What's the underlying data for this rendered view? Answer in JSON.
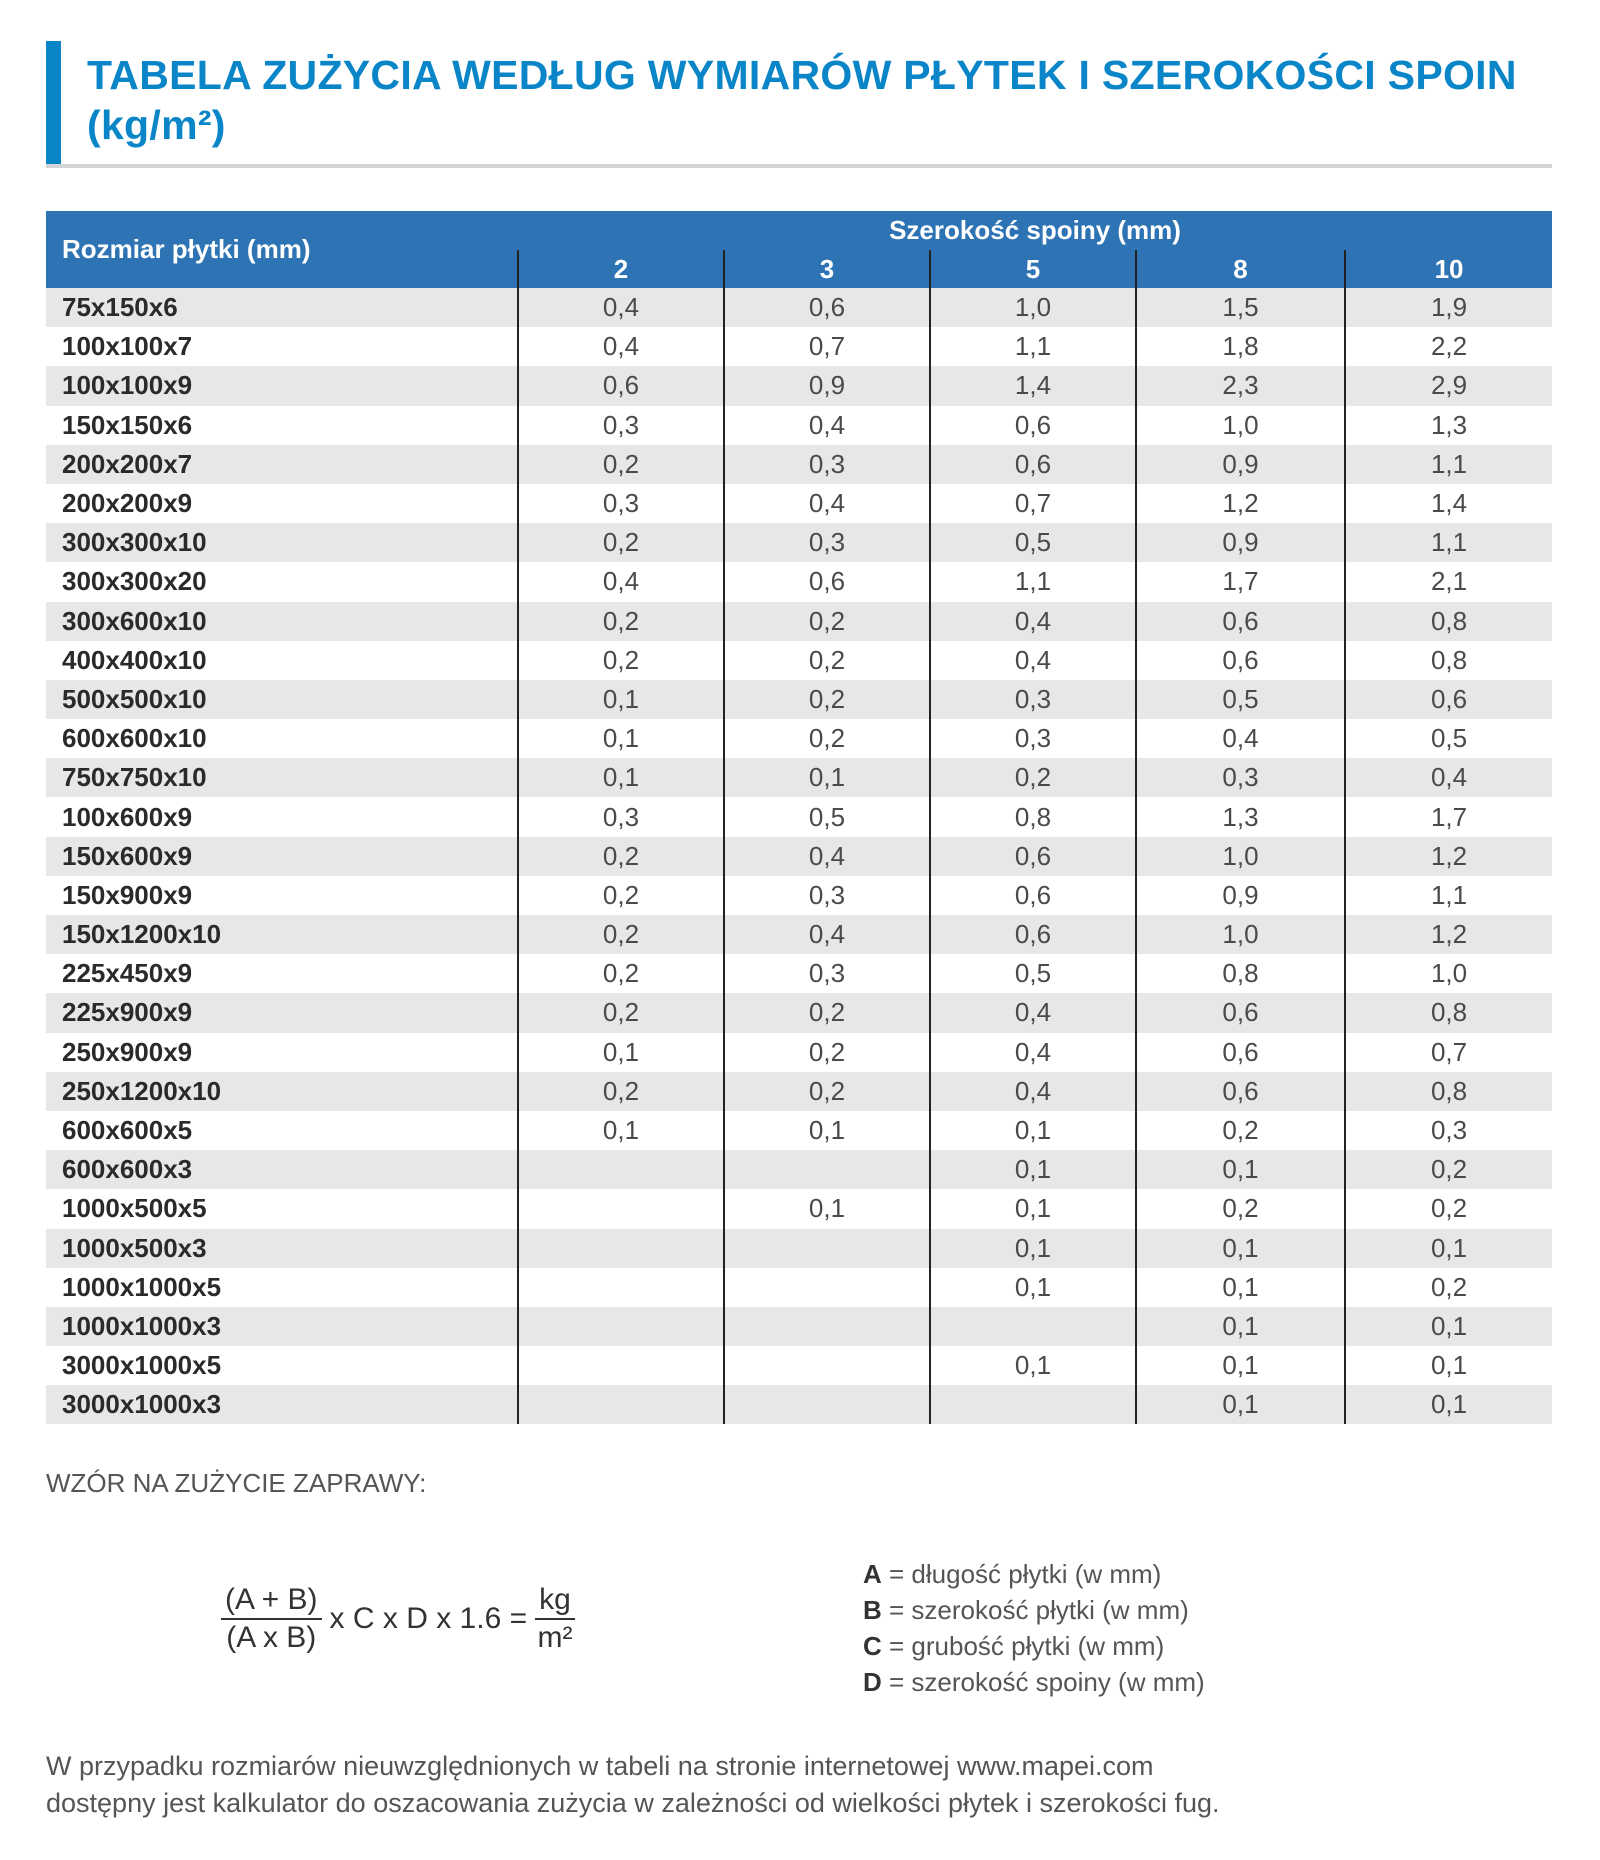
{
  "title": "TABELA ZUŻYCIA WEDŁUG WYMIARÓW PŁYTEK I SZEROKOŚCI SPOIN (kg/m²)",
  "colors": {
    "title": "#0a86c8",
    "header_bg": "#2e74b5",
    "stripe": "#e7e7e9"
  },
  "table": {
    "row_header": "Rozmiar płytki (mm)",
    "group_header": "Szerokość spoiny (mm)",
    "columns": [
      "2",
      "3",
      "5",
      "8",
      "10"
    ],
    "rows": [
      {
        "size": "75x150x6",
        "values": [
          "0,4",
          "0,6",
          "1,0",
          "1,5",
          "1,9"
        ]
      },
      {
        "size": "100x100x7",
        "values": [
          "0,4",
          "0,7",
          "1,1",
          "1,8",
          "2,2"
        ]
      },
      {
        "size": "100x100x9",
        "values": [
          "0,6",
          "0,9",
          "1,4",
          "2,3",
          "2,9"
        ]
      },
      {
        "size": "150x150x6",
        "values": [
          "0,3",
          "0,4",
          "0,6",
          "1,0",
          "1,3"
        ]
      },
      {
        "size": "200x200x7",
        "values": [
          "0,2",
          "0,3",
          "0,6",
          "0,9",
          "1,1"
        ]
      },
      {
        "size": "200x200x9",
        "values": [
          "0,3",
          "0,4",
          "0,7",
          "1,2",
          "1,4"
        ]
      },
      {
        "size": "300x300x10",
        "values": [
          "0,2",
          "0,3",
          "0,5",
          "0,9",
          "1,1"
        ]
      },
      {
        "size": "300x300x20",
        "values": [
          "0,4",
          "0,6",
          "1,1",
          "1,7",
          "2,1"
        ]
      },
      {
        "size": "300x600x10",
        "values": [
          "0,2",
          "0,2",
          "0,4",
          "0,6",
          "0,8"
        ]
      },
      {
        "size": "400x400x10",
        "values": [
          "0,2",
          "0,2",
          "0,4",
          "0,6",
          "0,8"
        ]
      },
      {
        "size": "500x500x10",
        "values": [
          "0,1",
          "0,2",
          "0,3",
          "0,5",
          "0,6"
        ]
      },
      {
        "size": "600x600x10",
        "values": [
          "0,1",
          "0,2",
          "0,3",
          "0,4",
          "0,5"
        ]
      },
      {
        "size": "750x750x10",
        "values": [
          "0,1",
          "0,1",
          "0,2",
          "0,3",
          "0,4"
        ]
      },
      {
        "size": "100x600x9",
        "values": [
          "0,3",
          "0,5",
          "0,8",
          "1,3",
          "1,7"
        ]
      },
      {
        "size": "150x600x9",
        "values": [
          "0,2",
          "0,4",
          "0,6",
          "1,0",
          "1,2"
        ]
      },
      {
        "size": "150x900x9",
        "values": [
          "0,2",
          "0,3",
          "0,6",
          "0,9",
          "1,1"
        ]
      },
      {
        "size": "150x1200x10",
        "values": [
          "0,2",
          "0,4",
          "0,6",
          "1,0",
          "1,2"
        ]
      },
      {
        "size": "225x450x9",
        "values": [
          "0,2",
          "0,3",
          "0,5",
          "0,8",
          "1,0"
        ]
      },
      {
        "size": "225x900x9",
        "values": [
          "0,2",
          "0,2",
          "0,4",
          "0,6",
          "0,8"
        ]
      },
      {
        "size": "250x900x9",
        "values": [
          "0,1",
          "0,2",
          "0,4",
          "0,6",
          "0,7"
        ]
      },
      {
        "size": "250x1200x10",
        "values": [
          "0,2",
          "0,2",
          "0,4",
          "0,6",
          "0,8"
        ]
      },
      {
        "size": "600x600x5",
        "values": [
          "0,1",
          "0,1",
          "0,1",
          "0,2",
          "0,3"
        ]
      },
      {
        "size": "600x600x3",
        "values": [
          "",
          "",
          "0,1",
          "0,1",
          "0,2"
        ]
      },
      {
        "size": "1000x500x5",
        "values": [
          "",
          "0,1",
          "0,1",
          "0,2",
          "0,2"
        ]
      },
      {
        "size": "1000x500x3",
        "values": [
          "",
          "",
          "0,1",
          "0,1",
          "0,1"
        ]
      },
      {
        "size": "1000x1000x5",
        "values": [
          "",
          "",
          "0,1",
          "0,1",
          "0,2"
        ]
      },
      {
        "size": "1000x1000x3",
        "values": [
          "",
          "",
          "",
          "0,1",
          "0,1"
        ]
      },
      {
        "size": "3000x1000x5",
        "values": [
          "",
          "",
          "0,1",
          "0,1",
          "0,1"
        ]
      },
      {
        "size": "3000x1000x3",
        "values": [
          "",
          "",
          "",
          "0,1",
          "0,1"
        ]
      }
    ]
  },
  "formula": {
    "heading": "WZÓR NA ZUŻYCIE ZAPRAWY:",
    "numerator": "(A + B)",
    "denominator": "(A x B)",
    "middle": "x C x D x 1.6 =",
    "unit_num": "kg",
    "unit_den": "m²",
    "legend": [
      {
        "key": "A",
        "text": " = długość płytki (w mm)"
      },
      {
        "key": "B",
        "text": " = szerokość płytki (w mm)"
      },
      {
        "key": "C",
        "text": " = grubość płytki (w mm)"
      },
      {
        "key": "D",
        "text": " = szerokość spoiny (w mm)"
      }
    ]
  },
  "footer": {
    "line1": "W przypadku rozmiarów nieuwzględnionych w tabeli na stronie internetowej www.mapei.com",
    "line2": "dostępny jest kalkulator do oszacowania zużycia w zależności od wielkości płytek i szerokości fug."
  }
}
